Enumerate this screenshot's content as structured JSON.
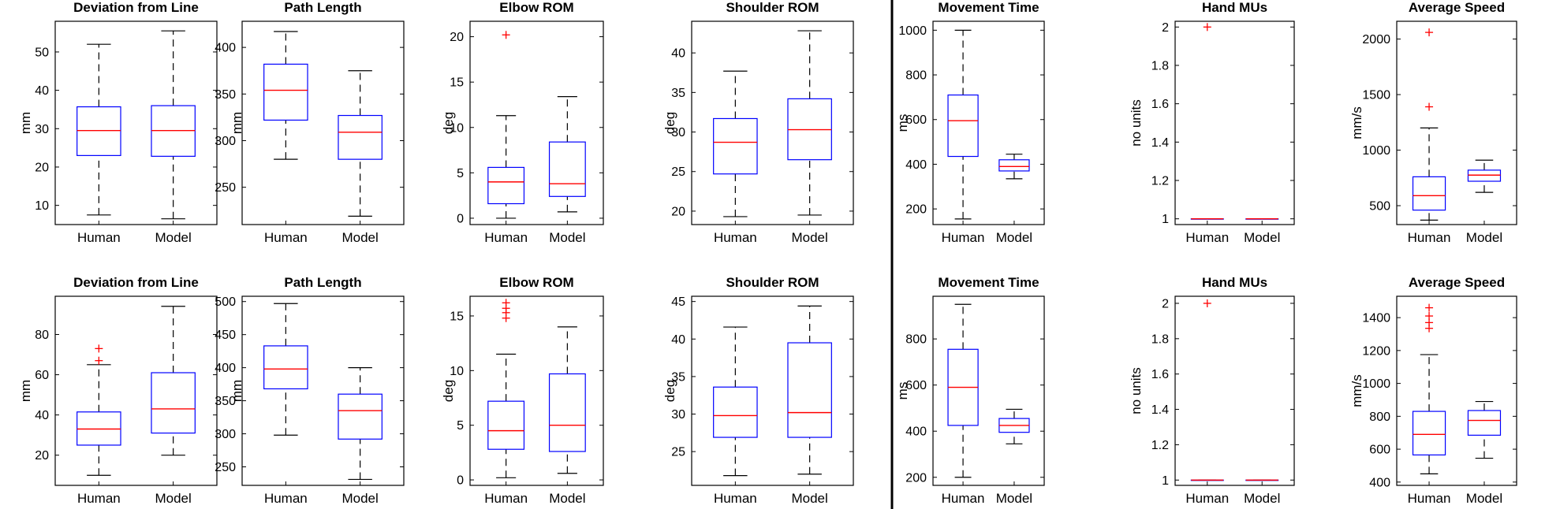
{
  "chart_data": [
    {
      "type": "box",
      "title": "Deviation from Line",
      "ylabel": "mm",
      "categories": [
        "Human",
        "Model"
      ],
      "ylim": [
        5,
        58
      ],
      "yticks": [
        10,
        20,
        30,
        40,
        50
      ],
      "boxes": [
        {
          "min": 7.5,
          "q1": 23,
          "median": 29.5,
          "q3": 35.7,
          "max": 52,
          "outliers": []
        },
        {
          "min": 6.5,
          "q1": 22.8,
          "median": 29.5,
          "q3": 36,
          "max": 55.5,
          "outliers": []
        }
      ]
    },
    {
      "type": "box",
      "title": "Path Length",
      "ylabel": "mm",
      "categories": [
        "Human",
        "Model"
      ],
      "ylim": [
        210,
        428
      ],
      "yticks": [
        250,
        300,
        350,
        400
      ],
      "boxes": [
        {
          "min": 280,
          "q1": 322,
          "median": 354,
          "q3": 382,
          "max": 417,
          "outliers": []
        },
        {
          "min": 219,
          "q1": 280,
          "median": 309,
          "q3": 327,
          "max": 375,
          "outliers": []
        }
      ]
    },
    {
      "type": "box",
      "title": "Elbow ROM",
      "ylabel": "deg",
      "categories": [
        "Human",
        "Model"
      ],
      "ylim": [
        -0.7,
        21.7
      ],
      "yticks": [
        0,
        5,
        10,
        15,
        20
      ],
      "boxes": [
        {
          "min": 0,
          "q1": 1.6,
          "median": 4,
          "q3": 5.6,
          "max": 11.3,
          "outliers": [
            20.2
          ]
        },
        {
          "min": 0.7,
          "q1": 2.4,
          "median": 3.8,
          "q3": 8.4,
          "max": 13.4,
          "outliers": []
        }
      ]
    },
    {
      "type": "box",
      "title": "Shoulder ROM",
      "ylabel": "deg",
      "categories": [
        "Human",
        "Model"
      ],
      "ylim": [
        18.3,
        44
      ],
      "yticks": [
        20,
        25,
        30,
        35,
        40
      ],
      "boxes": [
        {
          "min": 19.3,
          "q1": 24.7,
          "median": 28.7,
          "q3": 31.7,
          "max": 37.7,
          "outliers": []
        },
        {
          "min": 19.5,
          "q1": 26.5,
          "median": 30.3,
          "q3": 34.2,
          "max": 42.8,
          "outliers": []
        }
      ]
    },
    {
      "type": "box",
      "title": "Movement Time",
      "ylabel": "ms",
      "categories": [
        "Human",
        "Model"
      ],
      "ylim": [
        130,
        1040
      ],
      "yticks": [
        200,
        400,
        600,
        800,
        1000
      ],
      "boxes": [
        {
          "min": 155,
          "q1": 435,
          "median": 595,
          "q3": 710,
          "max": 1000,
          "outliers": []
        },
        {
          "min": 335,
          "q1": 370,
          "median": 390,
          "q3": 420,
          "max": 445,
          "outliers": []
        }
      ]
    },
    {
      "type": "box",
      "title": "Hand MUs",
      "ylabel": "no units",
      "categories": [
        "Human",
        "Model"
      ],
      "ylim": [
        0.97,
        2.03
      ],
      "yticks": [
        1,
        1.2,
        1.4,
        1.6,
        1.8,
        2
      ],
      "boxes": [
        {
          "min": 1,
          "q1": 1,
          "median": 1,
          "q3": 1,
          "max": 1,
          "outliers": [
            2
          ]
        },
        {
          "min": 1,
          "q1": 1,
          "median": 1,
          "q3": 1,
          "max": 1,
          "outliers": []
        }
      ]
    },
    {
      "type": "box",
      "title": "Average Speed",
      "ylabel": "mm/s",
      "categories": [
        "Human",
        "Model"
      ],
      "ylim": [
        330,
        2160
      ],
      "yticks": [
        500,
        1000,
        1500,
        2000
      ],
      "boxes": [
        {
          "min": 370,
          "q1": 460,
          "median": 590,
          "q3": 760,
          "max": 1200,
          "outliers": [
            1390,
            2060
          ]
        },
        {
          "min": 620,
          "q1": 720,
          "median": 775,
          "q3": 820,
          "max": 910,
          "outliers": []
        }
      ]
    },
    {
      "type": "box",
      "title": "Deviation from Line",
      "ylabel": "mm",
      "categories": [
        "Human",
        "Model"
      ],
      "ylim": [
        5,
        99
      ],
      "yticks": [
        20,
        40,
        60,
        80
      ],
      "boxes": [
        {
          "min": 10,
          "q1": 25,
          "median": 33,
          "q3": 41.5,
          "max": 65,
          "outliers": [
            67,
            73
          ]
        },
        {
          "min": 20,
          "q1": 31,
          "median": 43,
          "q3": 61,
          "max": 94,
          "outliers": []
        }
      ]
    },
    {
      "type": "box",
      "title": "Path Length",
      "ylabel": "mm",
      "categories": [
        "Human",
        "Model"
      ],
      "ylim": [
        222,
        508
      ],
      "yticks": [
        250,
        300,
        350,
        400,
        450,
        500
      ],
      "boxes": [
        {
          "min": 298,
          "q1": 368,
          "median": 398,
          "q3": 433,
          "max": 497,
          "outliers": []
        },
        {
          "min": 231,
          "q1": 292,
          "median": 335,
          "q3": 360,
          "max": 400,
          "outliers": []
        }
      ]
    },
    {
      "type": "box",
      "title": "Elbow ROM",
      "ylabel": "deg",
      "categories": [
        "Human",
        "Model"
      ],
      "ylim": [
        -0.5,
        16.8
      ],
      "yticks": [
        0,
        5,
        10,
        15
      ],
      "boxes": [
        {
          "min": 0.2,
          "q1": 2.8,
          "median": 4.5,
          "q3": 7.2,
          "max": 11.5,
          "outliers": [
            14.8,
            15.3,
            15.7,
            16.2
          ]
        },
        {
          "min": 0.6,
          "q1": 2.6,
          "median": 5,
          "q3": 9.7,
          "max": 14,
          "outliers": []
        }
      ]
    },
    {
      "type": "box",
      "title": "Shoulder ROM",
      "ylabel": "deg",
      "categories": [
        "Human",
        "Model"
      ],
      "ylim": [
        20.5,
        45.7
      ],
      "yticks": [
        25,
        30,
        35,
        40,
        45
      ],
      "boxes": [
        {
          "min": 21.8,
          "q1": 26.9,
          "median": 29.8,
          "q3": 33.6,
          "max": 41.6,
          "outliers": []
        },
        {
          "min": 22,
          "q1": 26.9,
          "median": 30.2,
          "q3": 39.5,
          "max": 44.4,
          "outliers": []
        }
      ]
    },
    {
      "type": "box",
      "title": "Movement Time",
      "ylabel": "ms",
      "categories": [
        "Human",
        "Model"
      ],
      "ylim": [
        165,
        985
      ],
      "yticks": [
        200,
        400,
        600,
        800
      ],
      "boxes": [
        {
          "min": 200,
          "q1": 425,
          "median": 590,
          "q3": 755,
          "max": 950,
          "outliers": []
        },
        {
          "min": 345,
          "q1": 395,
          "median": 425,
          "q3": 455,
          "max": 495,
          "outliers": []
        }
      ]
    },
    {
      "type": "box",
      "title": "Hand MUs",
      "ylabel": "no units",
      "categories": [
        "Human",
        "Model"
      ],
      "ylim": [
        0.97,
        2.04
      ],
      "yticks": [
        1,
        1.2,
        1.4,
        1.6,
        1.8,
        2
      ],
      "boxes": [
        {
          "min": 1,
          "q1": 1,
          "median": 1,
          "q3": 1,
          "max": 1,
          "outliers": [
            2
          ]
        },
        {
          "min": 1,
          "q1": 1,
          "median": 1,
          "q3": 1,
          "max": 1,
          "outliers": []
        }
      ]
    },
    {
      "type": "box",
      "title": "Average Speed",
      "ylabel": "mm/s",
      "categories": [
        "Human",
        "Model"
      ],
      "ylim": [
        380,
        1530
      ],
      "yticks": [
        400,
        600,
        800,
        1000,
        1200,
        1400
      ],
      "boxes": [
        {
          "min": 450,
          "q1": 565,
          "median": 690,
          "q3": 830,
          "max": 1175,
          "outliers": [
            1335,
            1370,
            1410,
            1460
          ]
        },
        {
          "min": 545,
          "q1": 685,
          "median": 775,
          "q3": 835,
          "max": 890,
          "outliers": []
        }
      ]
    }
  ],
  "colors": {
    "box": "#0000ff",
    "median": "#ff0000",
    "outlier": "#ff0000",
    "whisker": "#000000",
    "axis": "#000000",
    "divider": "#000000"
  }
}
